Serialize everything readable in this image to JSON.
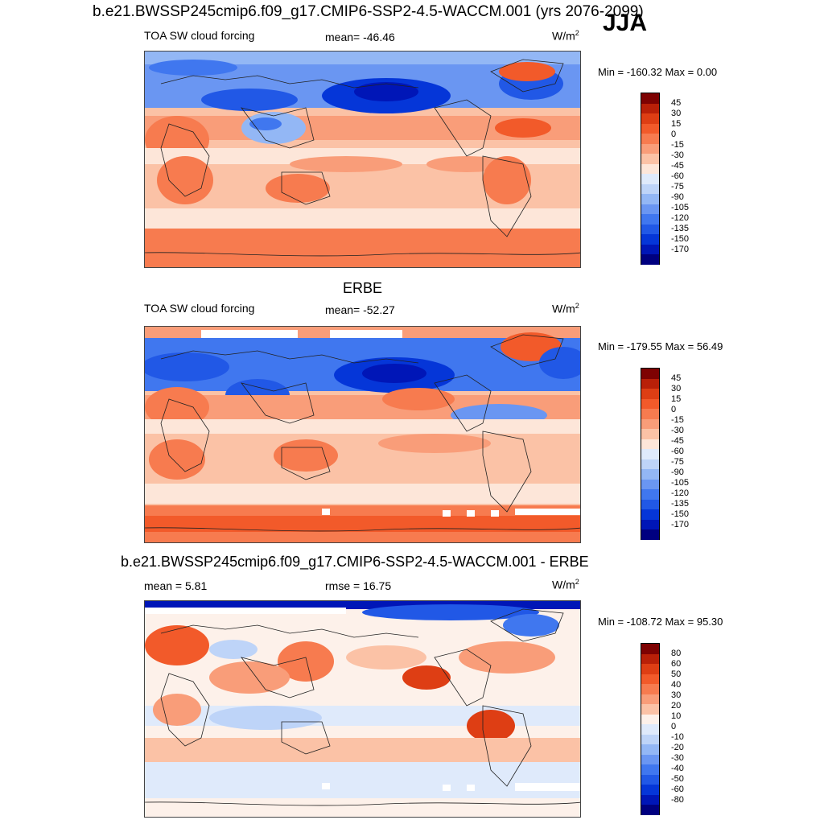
{
  "header": {
    "title": "b.e21.BWSSP245cmip6.f09_g17.CMIP6-SSP2-4.5-WACCM.001 (yrs 2076-2099)",
    "season": "JJA"
  },
  "colors": {
    "scale_sw": [
      "#000080",
      "#0016b7",
      "#0536d8",
      "#2158e6",
      "#4077ef",
      "#6a96f2",
      "#93b7f5",
      "#bed4f8",
      "#dfeafb",
      "#fde6d9",
      "#fbc2a6",
      "#f99d79",
      "#f77b4f",
      "#f25a2a",
      "#de3e14",
      "#b92008",
      "#7e0202"
    ],
    "scale_diff": [
      "#000080",
      "#0016b7",
      "#0536d8",
      "#2158e6",
      "#4077ef",
      "#6a96f2",
      "#93b7f5",
      "#bed4f8",
      "#dfeafb",
      "#fdf1ea",
      "#fbc2a6",
      "#f99d79",
      "#f77b4f",
      "#f25a2a",
      "#de3e14",
      "#b92008",
      "#7e0202"
    ]
  },
  "panels": [
    {
      "heading": "",
      "left_label": "TOA SW cloud forcing",
      "center_label": "mean= -46.46",
      "units": "W/m",
      "units_sup": "2",
      "minmax": "Min = -160.32 Max =   0.00",
      "colorbar_labels": [
        "45",
        "30",
        "15",
        "0",
        "-15",
        "-30",
        "-45",
        "-60",
        "-75",
        "-90",
        "-105",
        "-120",
        "-135",
        "-150",
        "-170"
      ]
    },
    {
      "heading": "ERBE",
      "left_label": "TOA SW cloud forcing",
      "center_label": "mean= -52.27",
      "units": "W/m",
      "units_sup": "2",
      "minmax": "Min = -179.55 Max =  56.49",
      "colorbar_labels": [
        "45",
        "30",
        "15",
        "0",
        "-15",
        "-30",
        "-45",
        "-60",
        "-75",
        "-90",
        "-105",
        "-120",
        "-135",
        "-150",
        "-170"
      ]
    },
    {
      "heading": "b.e21.BWSSP245cmip6.f09_g17.CMIP6-SSP2-4.5-WACCM.001 - ERBE",
      "left_label": "mean =   5.81",
      "center_label": "rmse =  16.75",
      "units": "W/m",
      "units_sup": "2",
      "minmax": "Min = -108.72 Max =  95.30",
      "colorbar_labels": [
        "80",
        "60",
        "50",
        "40",
        "30",
        "20",
        "10",
        "0",
        "-10",
        "-20",
        "-30",
        "-40",
        "-50",
        "-60",
        "-80"
      ]
    }
  ]
}
